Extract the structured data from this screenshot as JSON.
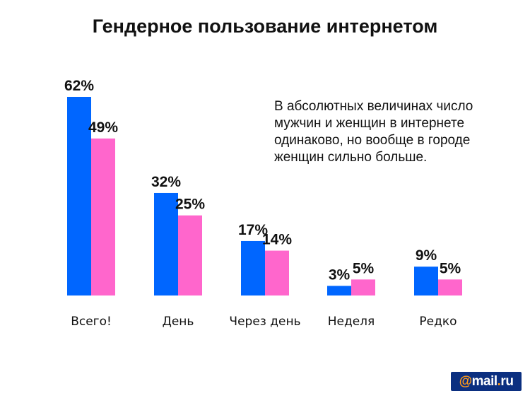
{
  "title": "Гендерное пользование интернетом",
  "note": "В абсолютных величинах число мужчин и женщин в интернете одинаково, но вообще в городе женщин сильно больше.",
  "logo": {
    "at": "@",
    "name": "mail",
    "dot": ".",
    "tld": "ru"
  },
  "colors": {
    "male": "#0066ff",
    "female": "#ff66cc"
  },
  "chart_data": {
    "type": "bar",
    "categories": [
      "Всего!",
      "День",
      "Через день",
      "Неделя",
      "Редко"
    ],
    "series": [
      {
        "values": [
          62,
          32,
          17,
          3,
          9
        ],
        "labels": [
          "62%",
          "32%",
          "17%",
          "3%",
          "9%"
        ]
      },
      {
        "values": [
          49,
          25,
          14,
          5,
          5
        ],
        "labels": [
          "49%",
          "25%",
          "14%",
          "5%",
          "5%"
        ]
      }
    ],
    "ylim": [
      0,
      62
    ],
    "grid": false,
    "legend": "none"
  }
}
